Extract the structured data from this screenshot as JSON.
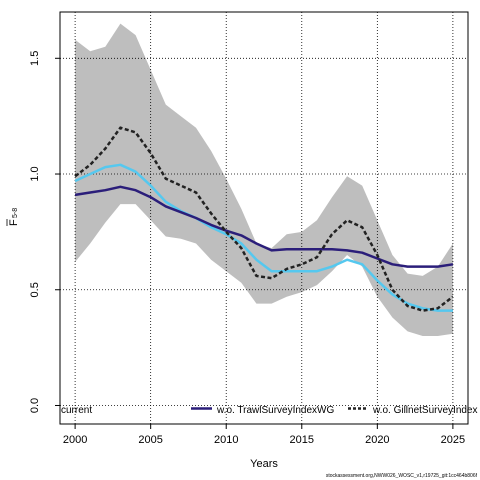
{
  "chart_data": {
    "type": "line",
    "ylabel_main": "F",
    "ylabel_sub": "5-8",
    "xlabel": "Years",
    "xlim": [
      1999,
      2026
    ],
    "ylim": [
      -0.08,
      1.7
    ],
    "x_ticks": [
      2000,
      2005,
      2010,
      2015,
      2020,
      2025
    ],
    "y_ticks": [
      0.0,
      0.5,
      1.0,
      1.5
    ],
    "y_tick_labels": [
      "0.0",
      "0.5",
      "1.0",
      "1.5"
    ],
    "grid": true,
    "legend_position": "bottom",
    "x": [
      2000,
      2001,
      2002,
      2003,
      2004,
      2005,
      2006,
      2007,
      2008,
      2009,
      2010,
      2011,
      2012,
      2013,
      2014,
      2015,
      2016,
      2017,
      2018,
      2019,
      2020,
      2021,
      2022,
      2023,
      2024,
      2025
    ],
    "band": {
      "color": "#bebebe",
      "upper": [
        1.58,
        1.53,
        1.55,
        1.65,
        1.6,
        1.45,
        1.3,
        1.25,
        1.2,
        1.1,
        0.98,
        0.85,
        0.7,
        0.68,
        0.74,
        0.75,
        0.8,
        0.9,
        0.99,
        0.95,
        0.8,
        0.65,
        0.57,
        0.56,
        0.6,
        0.7
      ],
      "lower": [
        0.62,
        0.7,
        0.79,
        0.87,
        0.87,
        0.8,
        0.73,
        0.72,
        0.7,
        0.63,
        0.58,
        0.53,
        0.44,
        0.44,
        0.47,
        0.49,
        0.52,
        0.58,
        0.65,
        0.6,
        0.47,
        0.38,
        0.32,
        0.3,
        0.3,
        0.31
      ]
    },
    "series": [
      {
        "name": "current",
        "color": "#55c8ef",
        "dash": "solid",
        "values": [
          0.97,
          1.0,
          1.03,
          1.04,
          1.01,
          0.95,
          0.88,
          0.84,
          0.81,
          0.77,
          0.74,
          0.7,
          0.63,
          0.58,
          0.58,
          0.58,
          0.58,
          0.6,
          0.63,
          0.61,
          0.54,
          0.48,
          0.44,
          0.42,
          0.41,
          0.41
        ]
      },
      {
        "name": "w.o. TrawlSurveyIndexWG",
        "color": "#2b1e7a",
        "dash": "solid",
        "values": [
          0.91,
          0.92,
          0.93,
          0.945,
          0.93,
          0.9,
          0.86,
          0.835,
          0.81,
          0.78,
          0.755,
          0.735,
          0.7,
          0.67,
          0.675,
          0.675,
          0.675,
          0.675,
          0.67,
          0.66,
          0.635,
          0.61,
          0.6,
          0.6,
          0.6,
          0.61
        ]
      },
      {
        "name": "w.o. GillnetSurveyIndex",
        "color": "#222222",
        "dash": "dashed",
        "values": [
          0.99,
          1.04,
          1.11,
          1.2,
          1.18,
          1.09,
          0.98,
          0.95,
          0.92,
          0.83,
          0.75,
          0.68,
          0.56,
          0.55,
          0.59,
          0.61,
          0.64,
          0.74,
          0.8,
          0.77,
          0.65,
          0.5,
          0.43,
          0.41,
          0.42,
          0.47
        ]
      }
    ],
    "legend_entries": [
      "current",
      "w.o. TrawlSurveyIndexWG",
      "w.o. GillnetSurveyIndex"
    ],
    "footnote": "stockassessment.org,NWW026_WOSC_v1,r19725_git:1cc464b806f"
  }
}
